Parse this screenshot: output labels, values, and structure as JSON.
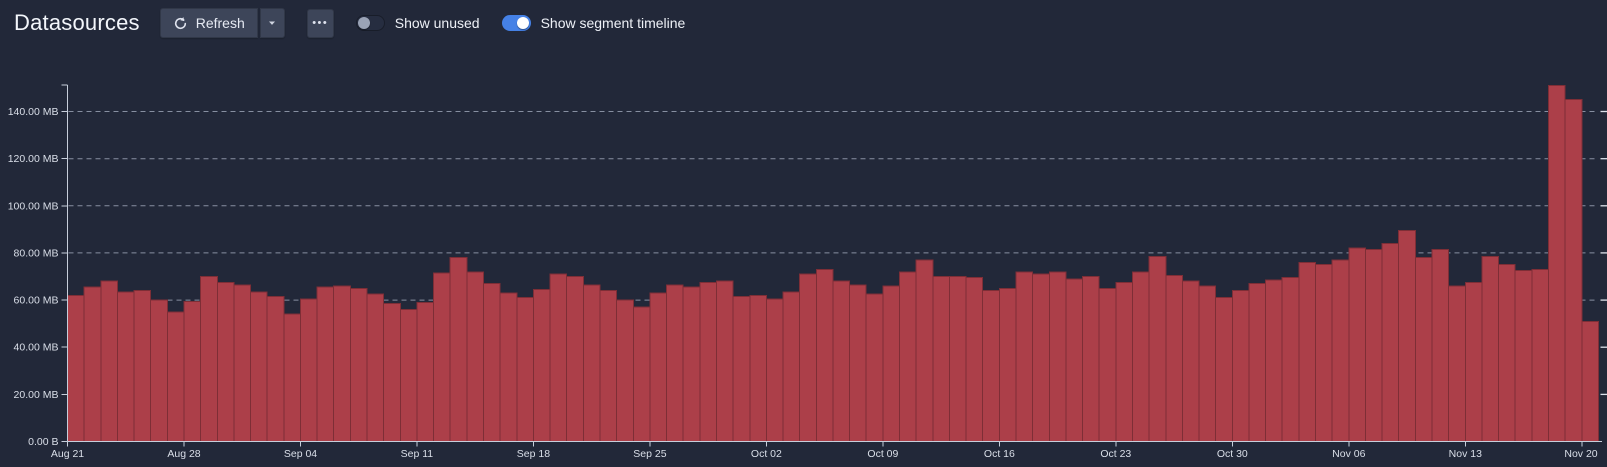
{
  "header": {
    "title": "Datasources",
    "refresh_button": {
      "label": "Refresh"
    },
    "more_button": {
      "glyph": "•••"
    },
    "toggles": [
      {
        "label": "Show unused",
        "state": "off"
      },
      {
        "label": "Show segment timeline",
        "state": "on"
      }
    ]
  },
  "colors": {
    "background": "#222839",
    "button": "#3d4559",
    "accent_blue": "#4581e6",
    "bar_fill": "#ac3f49",
    "bar_stroke": "#7e2e36",
    "grid": "#99a2b4",
    "axis": "#c7cedb",
    "axis_text": "#dadfe9"
  },
  "chart_data": {
    "type": "bar",
    "title": "",
    "xlabel": "",
    "ylabel": "",
    "unit": "MB",
    "ylim": [
      0,
      150
    ],
    "grid": "horizontal-dashed",
    "legend": "none",
    "y_tick_values": [
      0,
      20,
      40,
      60,
      80,
      100,
      120,
      140
    ],
    "y_tick_labels": [
      "0.00 B",
      "20.00 MB",
      "40.00 MB",
      "60.00 MB",
      "80.00 MB",
      "100.00 MB",
      "120.00 MB",
      "140.00 MB"
    ],
    "x_tick_step": 7,
    "x_tick_labels": [
      "Aug 21",
      "Aug 28",
      "Sep 04",
      "Sep 11",
      "Sep 18",
      "Sep 25",
      "Oct 02",
      "Oct 09",
      "Oct 16",
      "Oct 23",
      "Oct 30",
      "Nov 06",
      "Nov 13",
      "Nov 20"
    ],
    "categories": [
      "Aug 21",
      "Aug 22",
      "Aug 23",
      "Aug 24",
      "Aug 25",
      "Aug 26",
      "Aug 27",
      "Aug 28",
      "Aug 29",
      "Aug 30",
      "Aug 31",
      "Sep 01",
      "Sep 02",
      "Sep 03",
      "Sep 04",
      "Sep 05",
      "Sep 06",
      "Sep 07",
      "Sep 08",
      "Sep 09",
      "Sep 10",
      "Sep 11",
      "Sep 12",
      "Sep 13",
      "Sep 14",
      "Sep 15",
      "Sep 16",
      "Sep 17",
      "Sep 18",
      "Sep 19",
      "Sep 20",
      "Sep 21",
      "Sep 22",
      "Sep 23",
      "Sep 24",
      "Sep 25",
      "Sep 26",
      "Sep 27",
      "Sep 28",
      "Sep 29",
      "Sep 30",
      "Oct 01",
      "Oct 02",
      "Oct 03",
      "Oct 04",
      "Oct 05",
      "Oct 06",
      "Oct 07",
      "Oct 08",
      "Oct 09",
      "Oct 10",
      "Oct 11",
      "Oct 12",
      "Oct 13",
      "Oct 14",
      "Oct 15",
      "Oct 16",
      "Oct 17",
      "Oct 18",
      "Oct 19",
      "Oct 20",
      "Oct 21",
      "Oct 22",
      "Oct 23",
      "Oct 24",
      "Oct 25",
      "Oct 26",
      "Oct 27",
      "Oct 28",
      "Oct 29",
      "Oct 30",
      "Oct 31",
      "Nov 01",
      "Nov 02",
      "Nov 03",
      "Nov 04",
      "Nov 05",
      "Nov 06",
      "Nov 07",
      "Nov 08",
      "Nov 09",
      "Nov 10",
      "Nov 11",
      "Nov 12",
      "Nov 13",
      "Nov 14",
      "Nov 15",
      "Nov 16",
      "Nov 17",
      "Nov 18",
      "Nov 19",
      "Nov 20"
    ],
    "values": [
      62,
      65.5,
      68,
      63.5,
      64,
      60,
      55,
      59.5,
      70,
      67.5,
      66.5,
      63.5,
      61.5,
      54,
      60.5,
      65.5,
      66,
      65,
      62.5,
      58.5,
      56,
      59,
      71.5,
      78,
      72,
      67,
      63,
      61,
      64.5,
      71,
      70,
      66.5,
      64,
      60,
      57,
      63,
      66.5,
      65.5,
      67.5,
      68,
      61.5,
      62,
      60.5,
      63.5,
      71,
      73,
      68,
      66.5,
      62.5,
      66,
      72,
      77,
      70,
      70,
      69.5,
      64,
      65,
      72,
      71,
      72,
      69,
      70,
      65,
      67.5,
      72,
      78.5,
      70.5,
      68,
      66,
      61,
      64,
      67,
      68.5,
      69.5,
      76,
      75,
      77,
      82,
      81.5,
      84,
      89.5,
      78,
      81.5,
      66,
      67.5,
      78.5,
      75,
      72.5,
      73,
      151,
      145,
      51
    ]
  }
}
